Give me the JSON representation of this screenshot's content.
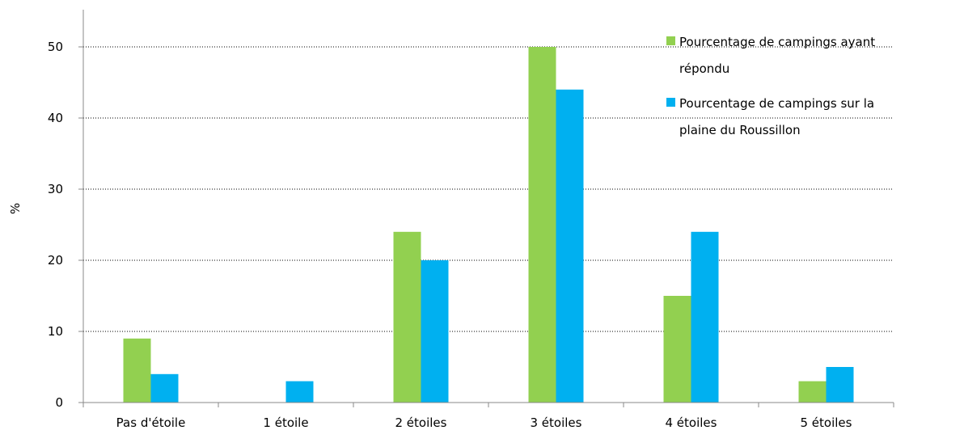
{
  "chart_data": {
    "type": "bar",
    "categories": [
      "Pas d'étoile",
      "1 étoile",
      "2 étoiles",
      "3 étoiles",
      "4 étoiles",
      "5 étoiles"
    ],
    "series": [
      {
        "name": "Pourcentage de campings ayant répondu",
        "values": [
          9,
          0,
          24,
          50,
          15,
          3
        ],
        "color": "#92d050"
      },
      {
        "name": "Pourcentage de campings sur la plaine du Roussillon",
        "values": [
          4,
          3,
          20,
          44,
          24,
          5
        ],
        "color": "#00b0f0"
      }
    ],
    "title": "",
    "xlabel": "",
    "ylabel": "%",
    "ylim": [
      0,
      55
    ],
    "yticks": [
      0,
      10,
      20,
      30,
      40,
      50
    ],
    "grid": "horizontal dotted",
    "legend_position": "top-right",
    "legend_lines": [
      [
        "Pourcentage de campings ayant",
        "répondu"
      ],
      [
        "Pourcentage de campings sur la",
        "plaine du Roussillon"
      ]
    ]
  }
}
